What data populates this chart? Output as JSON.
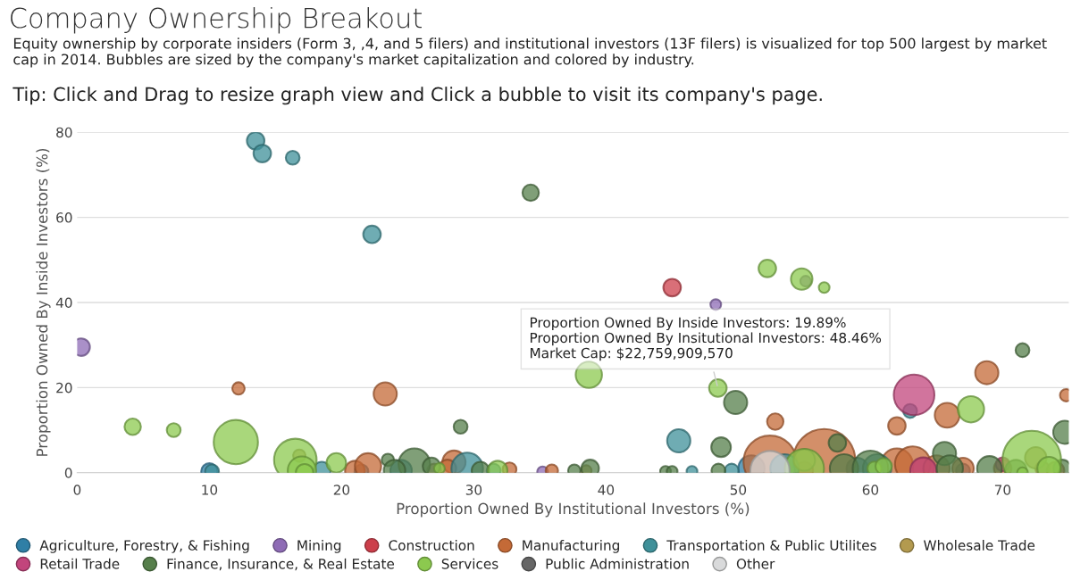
{
  "chart_data": {
    "type": "bubble",
    "title": "Company Ownership Breakout",
    "subtitle": "Equity ownership by corporate insiders (Form 3, ,4, and 5 filers) and institutional investors (13F filers) is visualized for top 500 largest by market cap in 2014. Bubbles are sized by the company's market capitalization and colored by industry.",
    "xlabel": "Proportion Owned By Institutional Investors (%)",
    "ylabel": "Proportion Owned By Inside Investors (%)",
    "annotations": [
      "Tip: Click and Drag to resize graph view and Click a bubble to visit its company's page.",
      {
        "text": "Proportion Owned By Inside Investors: 19.89%\nProportion Owned By Insitutional Investors: 48.46%\nMarket Cap: $22,759,909,570",
        "x": 48.46,
        "y": 19.89
      }
    ],
    "xlim": [
      0,
      75
    ],
    "ylim": [
      0,
      80
    ],
    "xticks": [
      0,
      10,
      20,
      30,
      40,
      50,
      60,
      70
    ],
    "yticks": [
      0,
      20,
      40,
      60,
      80
    ],
    "grid": "y",
    "legend": "bottom",
    "marker": "circle",
    "series": [
      {
        "name": "Agriculture, Forestry, & Fishing",
        "color": "#2f7fa6",
        "x": [
          10,
          21.5,
          24.5,
          51,
          59,
          67
        ],
        "values": [
          0.3,
          0.3,
          0.5,
          1,
          1,
          0.5
        ],
        "sizes": [
          0.07,
          0.05,
          0.12,
          0.18,
          0.12,
          0.05
        ]
      },
      {
        "name": "Mining",
        "color": "#8e6bb5",
        "x": [
          0.3,
          35.2,
          48.3,
          55.1
        ],
        "values": [
          29.5,
          0.2,
          39.5,
          45
        ],
        "sizes": [
          0.08,
          0.03,
          0.03,
          0.03
        ]
      },
      {
        "name": "Construction",
        "color": "#cc3f4b",
        "x": [
          45,
          55,
          64,
          73
        ],
        "values": [
          43.5,
          0.5,
          1,
          1
        ],
        "sizes": [
          0.08,
          0.08,
          0.12,
          0.05
        ]
      },
      {
        "name": "Manufacturing",
        "color": "#c46a37",
        "x": [
          12.2,
          23.3,
          52.8,
          68.8,
          62,
          65.8,
          74.8,
          21,
          22,
          28.5,
          28,
          32.7,
          35.9,
          52.4,
          56.5,
          62,
          63.2,
          65,
          67,
          70,
          74
        ],
        "values": [
          19.8,
          18.5,
          12,
          23.5,
          11,
          13.5,
          18.2,
          0.5,
          1.5,
          2.5,
          1,
          0.8,
          0.5,
          2.5,
          3,
          2,
          2,
          1,
          1,
          1,
          0.5
        ],
        "sizes": [
          0.04,
          0.14,
          0.07,
          0.14,
          0.08,
          0.16,
          0.04,
          0.1,
          0.18,
          0.14,
          0.08,
          0.05,
          0.04,
          0.73,
          1,
          0.26,
          0.33,
          0.18,
          0.12,
          0.08,
          0.08
        ]
      },
      {
        "name": "Transportation & Public Utilites",
        "color": "#3f9099",
        "x": [
          13.5,
          14,
          16.3,
          22.3,
          45.5,
          63,
          18.5,
          29.5,
          31.5,
          46.5,
          49.5,
          60.5,
          53.5,
          10.2
        ],
        "values": [
          78,
          75,
          74,
          56,
          7.5,
          14.5,
          0.5,
          1,
          0.5,
          0.3,
          0.5,
          1,
          1,
          0.3
        ],
        "sizes": [
          0.08,
          0.08,
          0.05,
          0.08,
          0.14,
          0.05,
          0.08,
          0.26,
          0.05,
          0.03,
          0.05,
          0.21,
          0.21,
          0.05
        ]
      },
      {
        "name": "Wholesale Trade",
        "color": "#b39a4f",
        "x": [
          16.8,
          38.5,
          55,
          72.5,
          27
        ],
        "values": [
          4,
          0.5,
          3,
          3.5,
          0.5
        ],
        "sizes": [
          0.04,
          0.03,
          0.12,
          0.12,
          0.05
        ]
      },
      {
        "name": "Retail Trade",
        "color": "#c2457c",
        "x": [
          63.3,
          64,
          70
        ],
        "values": [
          18.3,
          0.5,
          2
        ],
        "sizes": [
          0.43,
          0.18,
          0.05
        ]
      },
      {
        "name": "Finance, Insurance, & Real Estate",
        "color": "#567f4b",
        "x": [
          34.3,
          29,
          23.5,
          25.5,
          26.8,
          24,
          30.5,
          38.8,
          37.6,
          44.5,
          45,
          48.7,
          49.8,
          48.5,
          57.5,
          58,
          60,
          65.6,
          71.5,
          74.7,
          66,
          69,
          71,
          74.5
        ],
        "values": [
          65.8,
          10.8,
          3,
          2,
          1.5,
          0.5,
          0.5,
          1,
          0.5,
          0.3,
          0.3,
          6,
          16.5,
          0.5,
          7,
          1,
          1,
          4.5,
          28.8,
          9.5,
          1,
          1,
          0.5,
          1
        ],
        "sizes": [
          0.07,
          0.05,
          0.04,
          0.26,
          0.08,
          0.12,
          0.08,
          0.08,
          0.04,
          0.03,
          0.03,
          0.1,
          0.14,
          0.05,
          0.08,
          0.21,
          0.33,
          0.14,
          0.05,
          0.14,
          0.18,
          0.16,
          0.12,
          0.08
        ]
      },
      {
        "name": "Services",
        "color": "#8cc94f",
        "x": [
          4.2,
          7.3,
          12,
          16.5,
          17,
          17.2,
          19.6,
          27.4,
          31.8,
          38.7,
          52.2,
          54.8,
          56.5,
          48.46,
          55,
          60.3,
          61,
          67.6,
          72.2,
          73.5,
          71.5
        ],
        "values": [
          10.8,
          10,
          7.2,
          3,
          0.5,
          0,
          2.3,
          1,
          0.5,
          23,
          48,
          45.5,
          43.5,
          19.89,
          1,
          1,
          1.5,
          14.9,
          3,
          1,
          0
        ],
        "sizes": [
          0.07,
          0.05,
          0.51,
          0.47,
          0.21,
          0.08,
          0.1,
          0.03,
          0.1,
          0.18,
          0.08,
          0.12,
          0.03,
          0.08,
          0.4,
          0.05,
          0.07,
          0.18,
          0.89,
          0.14,
          0.03
        ]
      },
      {
        "name": "Public Administration",
        "color": "#666666"
      },
      {
        "name": "Other",
        "color": "#d9dadb",
        "x": [
          52.4
        ],
        "values": [
          0.5
        ],
        "sizes": [
          0.4
        ]
      }
    ]
  }
}
